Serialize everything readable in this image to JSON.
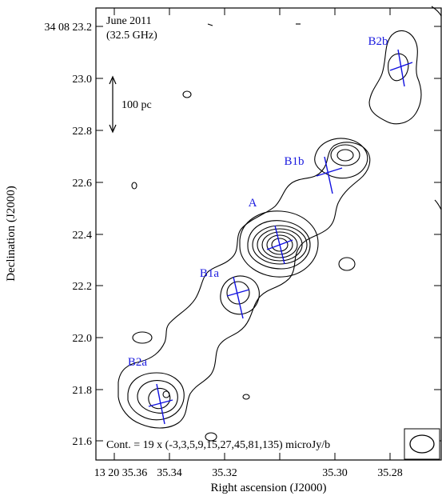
{
  "panel": {
    "epoch": "June 2011",
    "frequency": "(32.5 GHz)",
    "scale_bar_label": "100 pc",
    "contour_note": "Cont. = 19 x (-3,3,5,9,15,27,45,81,135) microJy/b"
  },
  "axes": {
    "xlabel": "Right ascension (J2000)",
    "ylabel": "Declination (J2000)",
    "x_ticks": [
      "13 20 35.36",
      "35.34",
      "35.32",
      "35.30",
      "35.28"
    ],
    "y_ticks": [
      "34 08 23.2",
      "23.0",
      "22.8",
      "22.6",
      "22.4",
      "22.2",
      "22.0",
      "21.8",
      "21.6"
    ]
  },
  "components": [
    {
      "name": "A",
      "label": "A"
    },
    {
      "name": "B1a",
      "label": "B1a"
    },
    {
      "name": "B1b",
      "label": "B1b"
    },
    {
      "name": "B2a",
      "label": "B2a"
    },
    {
      "name": "B2b",
      "label": "B2b"
    }
  ],
  "colors": {
    "contours": "#000000",
    "component_markers": "#1010e0",
    "component_labels": "#1a1adf"
  },
  "icons": {
    "beam": "ellipse-icon",
    "scale_bar": "double-arrow-icon"
  }
}
